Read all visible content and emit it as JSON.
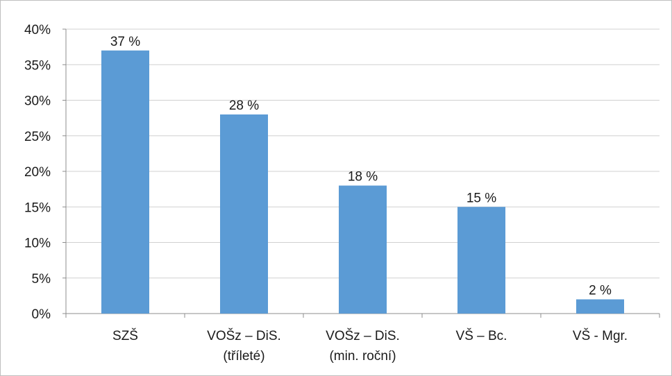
{
  "chart_data": {
    "type": "bar",
    "categories": [
      [
        "SZŠ"
      ],
      [
        "VOŠz – DiS.",
        "(tříleté)"
      ],
      [
        "VOŠz – DiS.",
        "(min. roční)"
      ],
      [
        "VŠ – Bc."
      ],
      [
        "VŠ - Mgr."
      ]
    ],
    "values": [
      37,
      28,
      18,
      15,
      2
    ],
    "data_labels": [
      "37 %",
      "28 %",
      "18 %",
      "15 %",
      "2 %"
    ],
    "y_ticks": [
      "0%",
      "5%",
      "10%",
      "15%",
      "20%",
      "25%",
      "30%",
      "35%",
      "40%"
    ],
    "ylim": [
      0,
      40
    ],
    "grid": true,
    "bar_color": "#5b9bd5"
  }
}
